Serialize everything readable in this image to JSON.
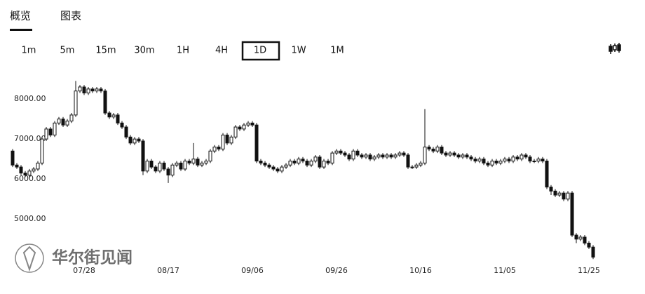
{
  "tabs": [
    {
      "label": "概览",
      "active": true
    },
    {
      "label": "图表"
    }
  ],
  "intervals": [
    {
      "label": "1m"
    },
    {
      "label": "5m"
    },
    {
      "label": "15m"
    },
    {
      "label": "30m"
    },
    {
      "label": "1H"
    },
    {
      "label": "4H"
    },
    {
      "label": "1D",
      "selected": true
    },
    {
      "label": "1W"
    },
    {
      "label": "1M"
    }
  ],
  "watermark": "华尔街见闻",
  "chart_data": {
    "type": "candlestick",
    "categories": [
      null,
      null,
      null,
      null,
      null,
      null,
      null,
      null,
      null,
      null,
      null,
      null,
      null,
      null,
      null,
      null,
      null,
      "07/28",
      null,
      null,
      null,
      null,
      null,
      null,
      null,
      null,
      null,
      null,
      null,
      null,
      null,
      null,
      null,
      null,
      null,
      null,
      null,
      "08/17",
      null,
      null,
      null,
      null,
      null,
      null,
      null,
      null,
      null,
      null,
      null,
      null,
      null,
      null,
      null,
      null,
      null,
      null,
      null,
      "09/06",
      null,
      null,
      null,
      null,
      null,
      null,
      null,
      null,
      null,
      null,
      null,
      null,
      null,
      null,
      null,
      null,
      null,
      null,
      null,
      "09/26",
      null,
      null,
      null,
      null,
      null,
      null,
      null,
      null,
      null,
      null,
      null,
      null,
      null,
      null,
      null,
      null,
      null,
      null,
      null,
      "10/16",
      null,
      null,
      null,
      null,
      null,
      null,
      null,
      null,
      null,
      null,
      null,
      null,
      null,
      null,
      null,
      null,
      null,
      null,
      null,
      "11/05",
      null,
      null,
      null,
      null,
      null,
      null,
      null,
      null,
      null,
      null,
      null,
      null,
      null,
      null,
      null,
      null,
      null,
      null,
      null,
      "11/25",
      null
    ],
    "open": [
      6700,
      6350,
      6300,
      6150,
      6100,
      6200,
      6250,
      6400,
      7000,
      7250,
      7100,
      7400,
      7500,
      7350,
      7450,
      7600,
      8200,
      8300,
      8150,
      8250,
      8200,
      8250,
      8200,
      7650,
      7550,
      7600,
      7400,
      7300,
      7050,
      6900,
      7000,
      6950,
      6200,
      6450,
      6300,
      6200,
      6400,
      6250,
      6100,
      6350,
      6400,
      6250,
      6450,
      6400,
      6500,
      6350,
      6400,
      6450,
      6700,
      6800,
      6750,
      7100,
      6900,
      7050,
      7300,
      7250,
      7350,
      7400,
      7350,
      6450,
      6400,
      6350,
      6300,
      6250,
      6200,
      6300,
      6350,
      6450,
      6400,
      6500,
      6450,
      6350,
      6450,
      6550,
      6300,
      6450,
      6400,
      6650,
      6700,
      6650,
      6600,
      6500,
      6700,
      6600,
      6550,
      6600,
      6500,
      6550,
      6600,
      6550,
      6600,
      6550,
      6600,
      6650,
      6600,
      6300,
      6300,
      6350,
      6400,
      6800,
      6750,
      6700,
      6800,
      6650,
      6600,
      6650,
      6600,
      6550,
      6600,
      6550,
      6500,
      6450,
      6500,
      6400,
      6350,
      6450,
      6400,
      6450,
      6500,
      6450,
      6550,
      6500,
      6600,
      6550,
      6450,
      6450,
      6500,
      6450,
      5800,
      5700,
      5600,
      5650,
      5500,
      5650,
      4600,
      4500,
      4550,
      4400,
      4300
    ],
    "high": [
      6750,
      6400,
      6350,
      6200,
      6250,
      6300,
      6450,
      7050,
      7300,
      7300,
      7450,
      7550,
      7550,
      7500,
      7650,
      8450,
      8350,
      8350,
      8300,
      8300,
      8300,
      8300,
      8250,
      7700,
      7650,
      7650,
      7450,
      7350,
      7100,
      7050,
      7050,
      7000,
      6500,
      6500,
      6350,
      6450,
      6450,
      6300,
      6400,
      6450,
      6450,
      6500,
      6500,
      6900,
      6550,
      6450,
      6500,
      6750,
      6850,
      6850,
      7150,
      7150,
      7100,
      7350,
      7350,
      7400,
      7450,
      7450,
      7400,
      6500,
      6450,
      6400,
      6350,
      6300,
      6350,
      6400,
      6500,
      6500,
      6550,
      6550,
      6500,
      6500,
      6600,
      6600,
      6500,
      6500,
      6700,
      6750,
      6750,
      6700,
      6650,
      6750,
      6750,
      6650,
      6650,
      6650,
      6600,
      6650,
      6650,
      6650,
      6650,
      6650,
      6700,
      6700,
      6650,
      6350,
      6400,
      6450,
      7750,
      6850,
      6800,
      6850,
      6850,
      6700,
      6700,
      6700,
      6650,
      6650,
      6650,
      6600,
      6550,
      6550,
      6550,
      6450,
      6500,
      6500,
      6500,
      6550,
      6550,
      6600,
      6600,
      6650,
      6650,
      6600,
      6500,
      6550,
      6550,
      6500,
      5850,
      5750,
      5700,
      5700,
      5700,
      5700,
      4650,
      4600,
      4600,
      4450,
      4350
    ],
    "low": [
      6300,
      6250,
      6100,
      6050,
      6050,
      6150,
      6200,
      6350,
      6950,
      7050,
      7050,
      7350,
      7300,
      7300,
      7400,
      7550,
      8150,
      8100,
      8100,
      8150,
      8150,
      8150,
      7600,
      7500,
      7500,
      7350,
      7250,
      7000,
      6850,
      6850,
      6900,
      6100,
      6150,
      6250,
      6150,
      6150,
      6200,
      5900,
      6050,
      6300,
      6200,
      6200,
      6350,
      6350,
      6300,
      6300,
      6350,
      6400,
      6650,
      6700,
      6700,
      6850,
      6850,
      7000,
      7200,
      7200,
      7300,
      7300,
      6400,
      6350,
      6300,
      6250,
      6200,
      6150,
      6150,
      6250,
      6300,
      6350,
      6350,
      6400,
      6300,
      6300,
      6400,
      6250,
      6250,
      6350,
      6350,
      6600,
      6600,
      6550,
      6450,
      6450,
      6550,
      6500,
      6500,
      6450,
      6450,
      6500,
      6500,
      6500,
      6500,
      6500,
      6550,
      6550,
      6250,
      6250,
      6250,
      6300,
      6350,
      6700,
      6650,
      6650,
      6600,
      6550,
      6550,
      6550,
      6500,
      6500,
      6500,
      6450,
      6400,
      6400,
      6350,
      6300,
      6300,
      6350,
      6350,
      6400,
      6400,
      6400,
      6450,
      6450,
      6500,
      6400,
      6400,
      6400,
      6400,
      5750,
      5600,
      5550,
      5550,
      5450,
      5450,
      4550,
      4400,
      4450,
      4350,
      4250,
      4000
    ],
    "close": [
      6350,
      6300,
      6150,
      6100,
      6200,
      6250,
      6400,
      7000,
      7250,
      7100,
      7400,
      7500,
      7350,
      7450,
      7600,
      8200,
      8300,
      8150,
      8250,
      8200,
      8250,
      8200,
      7650,
      7550,
      7600,
      7400,
      7300,
      7050,
      6900,
      7000,
      6950,
      6200,
      6450,
      6300,
      6200,
      6400,
      6250,
      6100,
      6350,
      6400,
      6250,
      6450,
      6400,
      6500,
      6350,
      6400,
      6450,
      6700,
      6800,
      6750,
      7100,
      6900,
      7050,
      7300,
      7250,
      7350,
      7400,
      7350,
      6450,
      6400,
      6350,
      6300,
      6250,
      6200,
      6300,
      6350,
      6450,
      6400,
      6500,
      6450,
      6350,
      6450,
      6550,
      6300,
      6450,
      6400,
      6650,
      6700,
      6650,
      6600,
      6500,
      6700,
      6600,
      6550,
      6600,
      6500,
      6550,
      6600,
      6550,
      6600,
      6550,
      6600,
      6650,
      6600,
      6300,
      6300,
      6350,
      6400,
      6800,
      6750,
      6700,
      6800,
      6650,
      6600,
      6650,
      6600,
      6550,
      6600,
      6550,
      6500,
      6450,
      6500,
      6400,
      6350,
      6450,
      6400,
      6450,
      6500,
      6450,
      6550,
      6500,
      6600,
      6550,
      6450,
      6450,
      6500,
      6450,
      5800,
      5700,
      5600,
      5650,
      5500,
      5650,
      4600,
      4500,
      4550,
      4400,
      4300,
      4050
    ],
    "up_color": "#ffffff",
    "down_color": "#111111",
    "line_color": "#111111",
    "ylim": [
      3900,
      8720
    ],
    "yticks": [
      {
        "value": 5000,
        "label": "5000.00"
      },
      {
        "value": 6000,
        "label": "6000.00"
      },
      {
        "value": 7000,
        "label": "7000.00"
      },
      {
        "value": 8000,
        "label": "8000.00"
      }
    ]
  }
}
